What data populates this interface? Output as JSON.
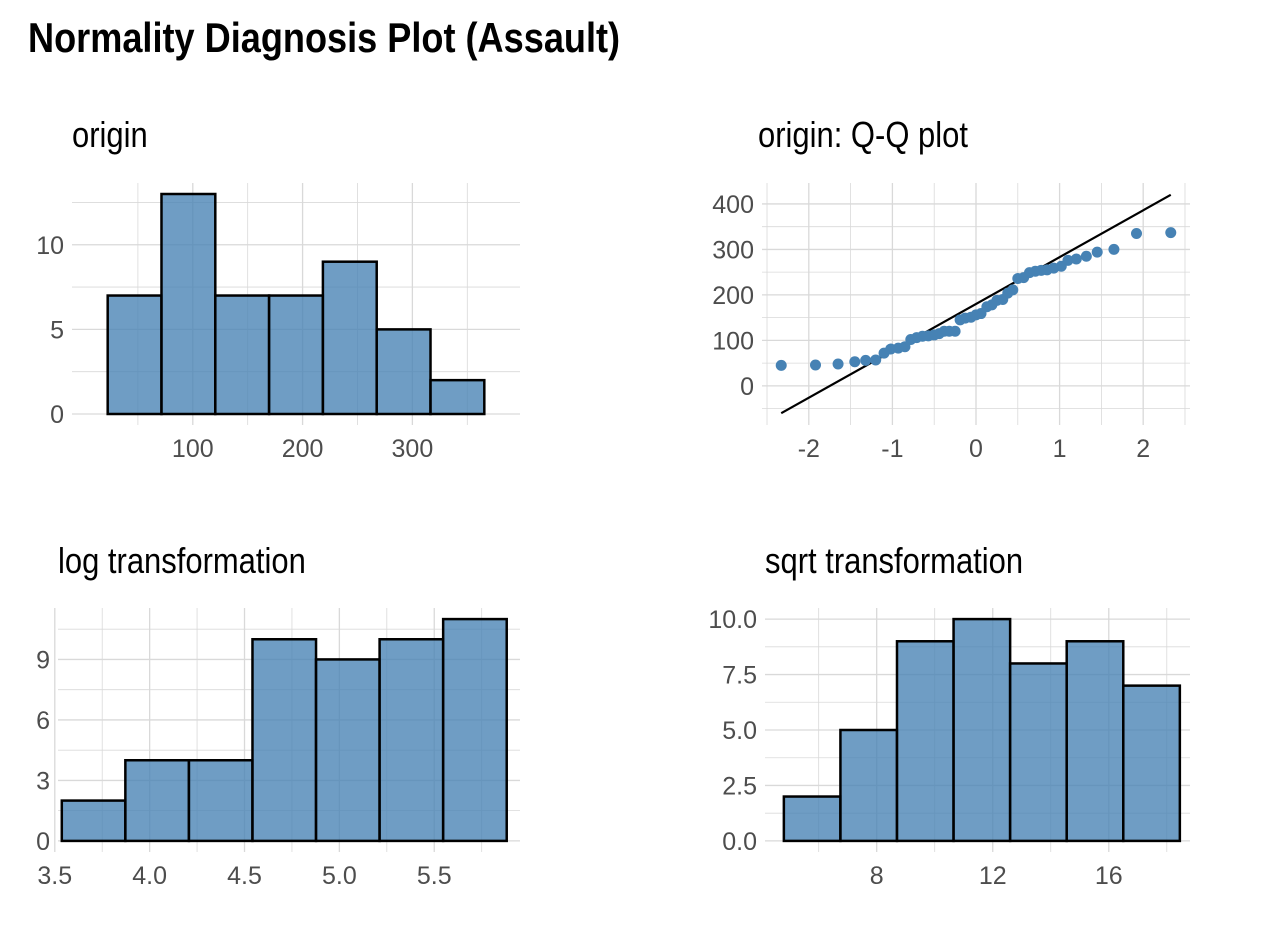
{
  "title": "Normality Diagnosis Plot (Assault)",
  "colors": {
    "fill": "#4682B4",
    "outline": "#000000",
    "grid": "#d9d9d9",
    "text": "#4d4d4d"
  },
  "panels": [
    {
      "title": "origin"
    },
    {
      "title": "origin: Q-Q plot"
    },
    {
      "title": "log transformation"
    },
    {
      "title": "sqrt transformation"
    }
  ],
  "chart_data": [
    {
      "type": "bar",
      "title": "origin",
      "bin_edges": [
        22.5,
        71.5,
        120.5,
        169.5,
        218.5,
        267.5,
        316.5,
        365.5
      ],
      "values": [
        7,
        13,
        7,
        7,
        9,
        5,
        2
      ],
      "xlim": [
        -10,
        398
      ],
      "ylim": [
        -0.65,
        13.65
      ],
      "x_ticks": [
        100,
        200,
        300
      ],
      "y_ticks": [
        0,
        5,
        10
      ],
      "grid": true
    },
    {
      "type": "scatter",
      "title": "origin: Q-Q plot",
      "x": [
        -2.33,
        -1.92,
        -1.65,
        -1.45,
        -1.32,
        -1.2,
        -1.1,
        -1.02,
        -0.93,
        -0.85,
        -0.78,
        -0.71,
        -0.64,
        -0.57,
        -0.5,
        -0.44,
        -0.38,
        -0.32,
        -0.25,
        -0.19,
        -0.13,
        -0.06,
        0.0,
        0.06,
        0.13,
        0.19,
        0.25,
        0.32,
        0.38,
        0.44,
        0.5,
        0.57,
        0.64,
        0.71,
        0.78,
        0.85,
        0.93,
        1.02,
        1.1,
        1.2,
        1.32,
        1.45,
        1.65,
        1.92,
        2.33
      ],
      "y": [
        45,
        46,
        48,
        53,
        56,
        57,
        72,
        81,
        83,
        86,
        102,
        106,
        109,
        110,
        112,
        115,
        120,
        120,
        120,
        145,
        149,
        151,
        156,
        159,
        174,
        178,
        188,
        190,
        204,
        211,
        236,
        238,
        249,
        252,
        254,
        255,
        259,
        263,
        276,
        279,
        285,
        294,
        300,
        335,
        337
      ],
      "reference_line": {
        "x": [
          -2.33,
          2.33
        ],
        "y": [
          -60,
          420
        ]
      },
      "xlim": [
        -2.56,
        2.56
      ],
      "ylim": [
        -86,
        446
      ],
      "x_ticks": [
        -2,
        -1,
        0,
        1,
        2
      ],
      "y_ticks": [
        0,
        100,
        200,
        300,
        400
      ],
      "grid": true
    },
    {
      "type": "bar",
      "title": "log transformation",
      "bin_edges": [
        3.537,
        3.872,
        4.207,
        4.542,
        4.877,
        5.212,
        5.547,
        5.882
      ],
      "values": [
        2,
        4,
        4,
        10,
        9,
        10,
        11
      ],
      "xlim": [
        3.517,
        5.952
      ],
      "ylim": [
        -0.55,
        11.55
      ],
      "x_ticks": [
        3.5,
        4.0,
        4.5,
        5.0,
        5.5
      ],
      "x_tick_labels": [
        "3.5",
        "4.0",
        "4.5",
        "5.0",
        "5.5"
      ],
      "y_ticks": [
        0,
        3,
        6,
        9
      ],
      "grid": true
    },
    {
      "type": "bar",
      "title": "sqrt transformation",
      "bin_edges": [
        4.8,
        6.75,
        8.7,
        10.65,
        12.6,
        14.55,
        16.5,
        18.45
      ],
      "values": [
        2,
        5,
        9,
        10,
        8,
        9,
        7
      ],
      "xlim": [
        4.15,
        18.8
      ],
      "ylim": [
        -0.5,
        10.5
      ],
      "x_ticks": [
        8,
        12,
        16
      ],
      "y_ticks": [
        0,
        2.5,
        5,
        7.5,
        10
      ],
      "y_tick_labels": [
        "0.0",
        "2.5",
        "5.0",
        "7.5",
        "10.0"
      ],
      "grid": true
    }
  ]
}
